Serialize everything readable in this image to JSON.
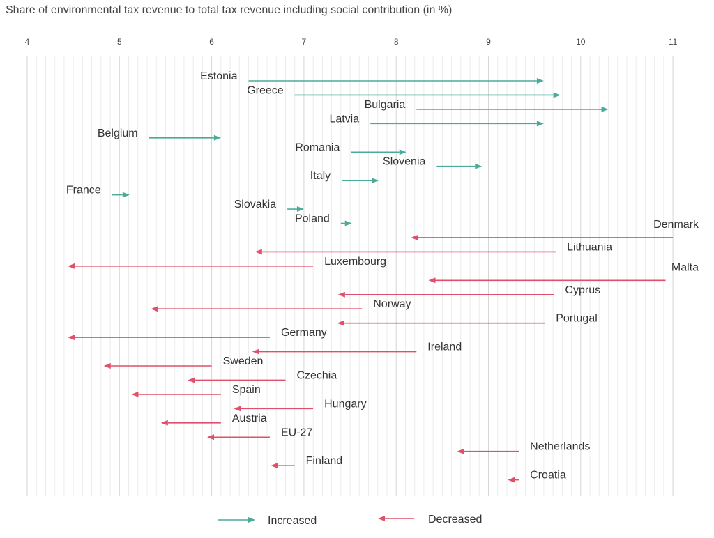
{
  "chart_data": {
    "type": "arrow",
    "title": "Share of environmental tax revenue to total tax revenue including social contribution (in %)",
    "x_ticks": [
      4,
      5,
      6,
      7,
      8,
      9,
      10,
      11
    ],
    "xlim": [
      4,
      11
    ],
    "grid": true,
    "legend_placement": "bottom",
    "colors": {
      "increased": "#4aab9a",
      "decreased": "#e0506a"
    },
    "legend": {
      "increased": "Increased",
      "decreased": "Decreased"
    },
    "rows": [
      {
        "country": "Estonia",
        "from": 6.4,
        "to": 9.6,
        "status": "increased"
      },
      {
        "country": "Greece",
        "from": 6.9,
        "to": 9.78,
        "status": "increased"
      },
      {
        "country": "Bulgaria",
        "from": 8.22,
        "to": 10.3,
        "status": "increased"
      },
      {
        "country": "Latvia",
        "from": 7.72,
        "to": 9.6,
        "status": "increased"
      },
      {
        "country": "Belgium",
        "from": 5.32,
        "to": 6.1,
        "status": "increased"
      },
      {
        "country": "Romania",
        "from": 7.51,
        "to": 8.11,
        "status": "increased"
      },
      {
        "country": "Slovenia",
        "from": 8.44,
        "to": 8.93,
        "status": "increased"
      },
      {
        "country": "Italy",
        "from": 7.41,
        "to": 7.81,
        "status": "increased"
      },
      {
        "country": "France",
        "from": 4.92,
        "to": 5.11,
        "status": "increased"
      },
      {
        "country": "Slovakia",
        "from": 6.82,
        "to": 7.0,
        "status": "increased"
      },
      {
        "country": "Poland",
        "from": 7.4,
        "to": 7.52,
        "status": "increased"
      },
      {
        "country": "Denmark",
        "from": 11.0,
        "to": 8.16,
        "status": "decreased"
      },
      {
        "country": "Lithuania",
        "from": 9.73,
        "to": 6.47,
        "status": "decreased"
      },
      {
        "country": "Luxembourg",
        "from": 7.1,
        "to": 4.44,
        "status": "decreased"
      },
      {
        "country": "Malta",
        "from": 10.92,
        "to": 8.35,
        "status": "decreased"
      },
      {
        "country": "Cyprus",
        "from": 9.71,
        "to": 7.37,
        "status": "decreased"
      },
      {
        "country": "Norway",
        "from": 7.63,
        "to": 5.34,
        "status": "decreased"
      },
      {
        "country": "Portugal",
        "from": 9.61,
        "to": 7.36,
        "status": "decreased"
      },
      {
        "country": "Germany",
        "from": 6.63,
        "to": 4.44,
        "status": "decreased"
      },
      {
        "country": "Ireland",
        "from": 8.22,
        "to": 6.44,
        "status": "decreased"
      },
      {
        "country": "Sweden",
        "from": 6.0,
        "to": 4.83,
        "status": "decreased"
      },
      {
        "country": "Czechia",
        "from": 6.8,
        "to": 5.74,
        "status": "decreased"
      },
      {
        "country": "Spain",
        "from": 6.1,
        "to": 5.13,
        "status": "decreased"
      },
      {
        "country": "Hungary",
        "from": 7.1,
        "to": 6.24,
        "status": "decreased"
      },
      {
        "country": "Austria",
        "from": 6.1,
        "to": 5.45,
        "status": "decreased"
      },
      {
        "country": "EU-27",
        "from": 6.63,
        "to": 5.95,
        "status": "decreased"
      },
      {
        "country": "Netherlands",
        "from": 9.33,
        "to": 8.66,
        "status": "decreased"
      },
      {
        "country": "Finland",
        "from": 6.9,
        "to": 6.64,
        "status": "decreased"
      },
      {
        "country": "Croatia",
        "from": 9.33,
        "to": 9.21,
        "status": "decreased"
      }
    ]
  }
}
